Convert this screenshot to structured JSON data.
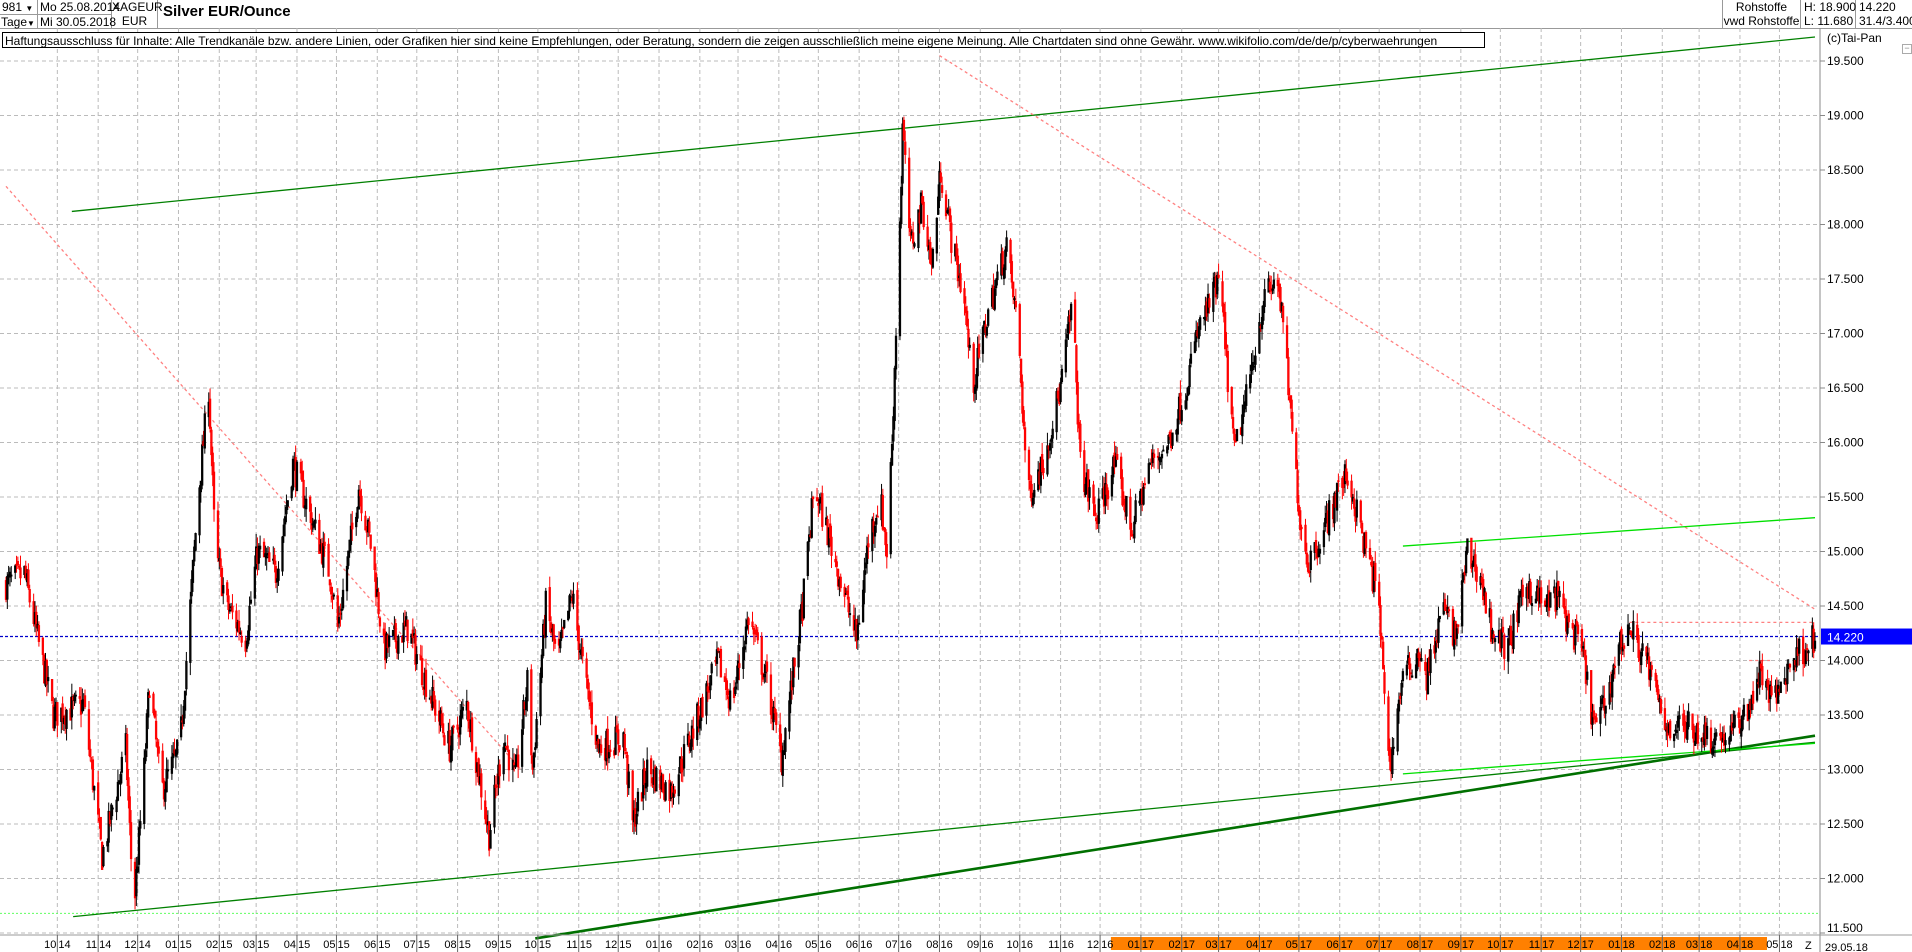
{
  "header": {
    "period_count": "981",
    "period_unit": "Tage",
    "date_from": "Mo 25.08.2014",
    "date_to": "Mi 30.05.2018",
    "symbol": "XAGEUR",
    "currency": "EUR",
    "title": "Silver EUR/Ounce",
    "category": "Rohstoffe",
    "source": "vwd Rohstoffe",
    "high": "H: 18.900",
    "low": "L: 11.680",
    "last": "14.220",
    "info": "31.4/3.400"
  },
  "disclaimer": "Haftungsausschluss für Inhalte: Alle Trendkanäle bzw. andere Linien, oder Grafiken hier sind keine Empfehlungen, oder Beratung, sondern die zeigen ausschließlich meine eigene Meinung. Alle Chartdaten sind ohne Gewähr.  www.wikifolio.com/de/de/p/cyberwaehrungen",
  "copyright": "(c)Tai-Pan",
  "colors": {
    "up": "#000000",
    "down": "#ff0000",
    "grid": "#bbbbbb",
    "last_line": "#0000cc",
    "last_badge": "#0000ff",
    "axis_highlight": "#ff8000"
  },
  "chart_data": {
    "type": "candlestick",
    "title": "Silver EUR/Ounce",
    "ylim": [
      11.5,
      19.7
    ],
    "grid": true,
    "y_ticks": [
      "19.500",
      "19.000",
      "18.500",
      "18.000",
      "17.500",
      "17.000",
      "16.500",
      "16.000",
      "15.500",
      "15.000",
      "14.500",
      "14.000",
      "13.500",
      "13.000",
      "12.500",
      "12.000",
      "11.500"
    ],
    "x_ticks": [
      "10 14",
      "11 14",
      "12 14",
      "01 15",
      "02 15",
      "03 15",
      "04 15",
      "05 15",
      "06 15",
      "07 15",
      "08 15",
      "09 15",
      "10 15",
      "11 15",
      "12 15",
      "01 16",
      "02 16",
      "03 16",
      "04 16",
      "05 16",
      "06 16",
      "07 16",
      "08 16",
      "09 16",
      "10 16",
      "11 16",
      "12 16",
      "01 17",
      "02 17",
      "03 17",
      "04 17",
      "05 17",
      "06 17",
      "07 17",
      "08 17",
      "09 17",
      "10 17",
      "11 17",
      "12 17",
      "01 18",
      "02 18",
      "03 18",
      "04 18",
      "05 18"
    ],
    "x_highlight_from": "01 17",
    "x_end_marker": "Z",
    "x_end_date": "29.05.18",
    "last_price": 14.22,
    "last_label": "14.220",
    "low_line": 11.68,
    "approx_closes": [
      [
        "2014-08-25",
        14.7
      ],
      [
        "2014-09-08",
        14.8
      ],
      [
        "2014-09-30",
        13.5
      ],
      [
        "2014-10-23",
        13.6
      ],
      [
        "2014-11-06",
        12.2
      ],
      [
        "2014-11-24",
        13.2
      ],
      [
        "2014-11-30",
        11.7
      ],
      [
        "2014-12-08",
        13.0
      ],
      [
        "2014-12-12",
        13.8
      ],
      [
        "2014-12-21",
        12.8
      ],
      [
        "2015-01-04",
        13.2
      ],
      [
        "2015-01-09",
        14.0
      ],
      [
        "2015-01-18",
        15.5
      ],
      [
        "2015-01-26",
        16.5
      ],
      [
        "2015-01-31",
        15.0
      ],
      [
        "2015-02-09",
        14.5
      ],
      [
        "2015-02-23",
        14.2
      ],
      [
        "2015-03-04",
        15.0
      ],
      [
        "2015-03-18",
        14.8
      ],
      [
        "2015-03-31",
        15.8
      ],
      [
        "2015-04-14",
        15.3
      ],
      [
        "2015-04-28",
        14.8
      ],
      [
        "2015-05-04",
        14.3
      ],
      [
        "2015-05-20",
        15.6
      ],
      [
        "2015-05-30",
        15.0
      ],
      [
        "2015-06-08",
        14.1
      ],
      [
        "2015-06-26",
        14.3
      ],
      [
        "2015-07-10",
        13.8
      ],
      [
        "2015-07-28",
        13.2
      ],
      [
        "2015-08-10",
        13.6
      ],
      [
        "2015-08-27",
        12.4
      ],
      [
        "2015-09-07",
        13.3
      ],
      [
        "2015-09-16",
        12.9
      ],
      [
        "2015-09-25",
        13.8
      ],
      [
        "2015-09-29",
        13.0
      ],
      [
        "2015-10-09",
        14.5
      ],
      [
        "2015-10-18",
        14.0
      ],
      [
        "2015-10-29",
        14.6
      ],
      [
        "2015-11-08",
        13.8
      ],
      [
        "2015-11-18",
        13.2
      ],
      [
        "2015-12-07",
        13.3
      ],
      [
        "2015-12-14",
        12.5
      ],
      [
        "2015-12-25",
        13.0
      ],
      [
        "2016-01-12",
        12.8
      ],
      [
        "2016-01-30",
        13.4
      ],
      [
        "2016-02-17",
        14.0
      ],
      [
        "2016-02-27",
        13.6
      ],
      [
        "2016-03-11",
        14.4
      ],
      [
        "2016-03-25",
        13.8
      ],
      [
        "2016-04-05",
        13.1
      ],
      [
        "2016-04-21",
        14.5
      ],
      [
        "2016-04-30",
        15.6
      ],
      [
        "2016-05-14",
        15.0
      ],
      [
        "2016-05-23",
        14.6
      ],
      [
        "2016-06-01",
        14.2
      ],
      [
        "2016-06-10",
        15.1
      ],
      [
        "2016-06-19",
        15.5
      ],
      [
        "2016-06-24",
        15.0
      ],
      [
        "2016-06-28",
        16.0
      ],
      [
        "2016-07-05",
        18.4
      ],
      [
        "2016-07-06",
        18.9
      ],
      [
        "2016-07-12",
        17.8
      ],
      [
        "2016-07-21",
        18.2
      ],
      [
        "2016-07-28",
        17.6
      ],
      [
        "2016-08-04",
        18.5
      ],
      [
        "2016-08-13",
        17.8
      ],
      [
        "2016-08-22",
        17.3
      ],
      [
        "2016-08-28",
        16.5
      ],
      [
        "2016-09-09",
        17.2
      ],
      [
        "2016-09-23",
        17.8
      ],
      [
        "2016-10-02",
        17.0
      ],
      [
        "2016-10-09",
        15.5
      ],
      [
        "2016-10-20",
        15.8
      ],
      [
        "2016-11-03",
        16.5
      ],
      [
        "2016-11-12",
        17.3
      ],
      [
        "2016-11-18",
        15.8
      ],
      [
        "2016-11-30",
        15.3
      ],
      [
        "2016-12-14",
        15.8
      ],
      [
        "2016-12-27",
        15.2
      ],
      [
        "2017-01-10",
        15.8
      ],
      [
        "2017-01-24",
        16.0
      ],
      [
        "2017-02-06",
        16.5
      ],
      [
        "2017-02-15",
        17.0
      ],
      [
        "2017-03-04",
        17.5
      ],
      [
        "2017-03-10",
        16.6
      ],
      [
        "2017-03-15",
        15.9
      ],
      [
        "2017-03-24",
        16.4
      ],
      [
        "2017-04-06",
        17.3
      ],
      [
        "2017-04-17",
        17.5
      ],
      [
        "2017-04-23",
        16.8
      ],
      [
        "2017-04-27",
        16.2
      ],
      [
        "2017-05-04",
        15.3
      ],
      [
        "2017-05-10",
        14.9
      ],
      [
        "2017-05-22",
        15.2
      ],
      [
        "2017-06-03",
        15.6
      ],
      [
        "2017-06-09",
        15.7
      ],
      [
        "2017-06-23",
        15.0
      ],
      [
        "2017-07-02",
        14.6
      ],
      [
        "2017-07-08",
        13.6
      ],
      [
        "2017-07-11",
        13.0
      ],
      [
        "2017-07-20",
        13.8
      ],
      [
        "2017-08-03",
        14.1
      ],
      [
        "2017-08-07",
        13.8
      ],
      [
        "2017-08-21",
        14.5
      ],
      [
        "2017-08-30",
        14.2
      ],
      [
        "2017-09-08",
        15.0
      ],
      [
        "2017-09-17",
        14.8
      ],
      [
        "2017-09-26",
        14.3
      ],
      [
        "2017-10-08",
        14.1
      ],
      [
        "2017-10-23",
        14.7
      ],
      [
        "2017-11-06",
        14.5
      ],
      [
        "2017-11-15",
        14.6
      ],
      [
        "2017-11-25",
        14.3
      ],
      [
        "2017-12-04",
        14.1
      ],
      [
        "2017-12-13",
        13.4
      ],
      [
        "2017-12-22",
        13.6
      ],
      [
        "2017-12-31",
        14.1
      ],
      [
        "2018-01-09",
        14.3
      ],
      [
        "2018-01-22",
        14.0
      ],
      [
        "2018-02-05",
        13.4
      ],
      [
        "2018-02-22",
        13.4
      ],
      [
        "2018-03-12",
        13.3
      ],
      [
        "2018-03-25",
        13.3
      ],
      [
        "2018-04-07",
        13.5
      ],
      [
        "2018-04-19",
        13.9
      ],
      [
        "2018-04-28",
        13.6
      ],
      [
        "2018-05-12",
        14.0
      ],
      [
        "2018-05-30",
        14.22
      ]
    ],
    "trendlines": [
      {
        "from": [
          "2014-10-14",
          18.12
        ],
        "to": [
          "2018-05-30",
          19.72
        ],
        "color": "#008000",
        "style": "solid",
        "weight": "thin"
      },
      {
        "from": [
          "2014-08-25",
          18.35
        ],
        "to": [
          "2015-09-20",
          13.0
        ],
        "color": "#ff8080",
        "style": "dashed",
        "weight": "thin"
      },
      {
        "from": [
          "2016-08-03",
          19.55
        ],
        "to": [
          "2018-05-30",
          14.47
        ],
        "color": "#ff8080",
        "style": "dashed",
        "weight": "thin"
      },
      {
        "from": [
          "2014-10-15",
          11.65
        ],
        "to": [
          "2018-05-30",
          13.25
        ],
        "color": "#008000",
        "style": "solid",
        "weight": "thin"
      },
      {
        "from": [
          "2015-10-01",
          11.45
        ],
        "to": [
          "2018-05-30",
          13.31
        ],
        "color": "#007000",
        "style": "solid",
        "weight": "thick"
      },
      {
        "from": [
          "2017-07-21",
          12.96
        ],
        "to": [
          "2018-05-30",
          13.24
        ],
        "color": "#00e000",
        "style": "solid",
        "weight": "thin"
      },
      {
        "from": [
          "2017-07-21",
          15.05
        ],
        "to": [
          "2018-05-30",
          15.31
        ],
        "color": "#00e000",
        "style": "solid",
        "weight": "thin"
      },
      {
        "from": [
          "2018-01-09",
          14.35
        ],
        "to": [
          "2018-05-30",
          14.35
        ],
        "color": "#ff8080",
        "style": "dashed",
        "weight": "thin"
      },
      {
        "from": [
          "2018-04-10",
          14.0
        ],
        "to": [
          "2018-04-28",
          14.0
        ],
        "color": "#ff8080",
        "style": "dashed",
        "weight": "thin"
      }
    ]
  }
}
